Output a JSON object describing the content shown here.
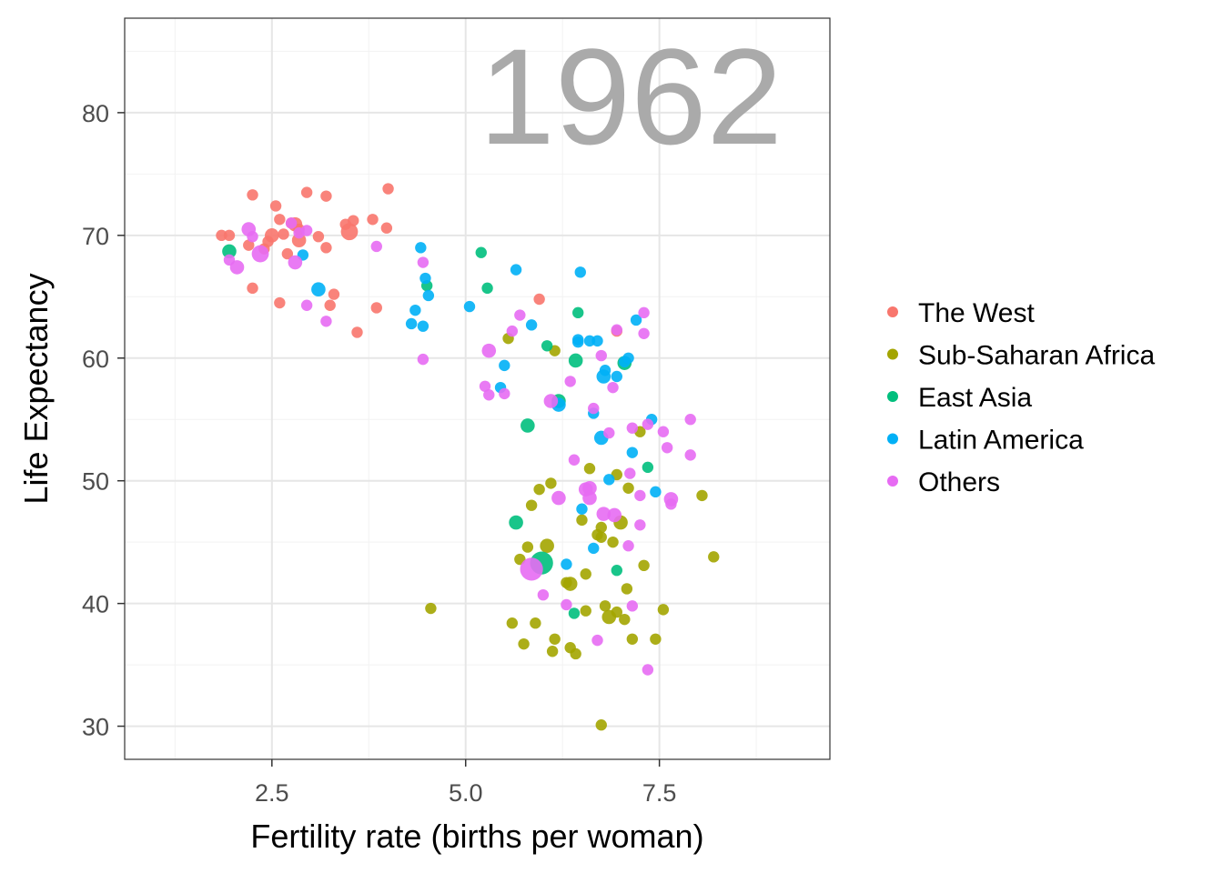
{
  "chart_data": {
    "type": "scatter",
    "title": "",
    "annotation": "1962",
    "xlabel": "Fertility rate (births per woman)",
    "ylabel": "Life Expectancy",
    "xlim": [
      0.6,
      9.7
    ],
    "ylim": [
      27.3,
      87.7
    ],
    "xticks": [
      2.5,
      5.0,
      7.5
    ],
    "xtick_labels": [
      "2.5",
      "5.0",
      "7.5"
    ],
    "yticks": [
      30,
      40,
      50,
      60,
      70,
      80
    ],
    "ytick_labels": [
      "30",
      "40",
      "50",
      "60",
      "70",
      "80"
    ],
    "grid": true,
    "legend_position": "right",
    "series": [
      {
        "name": "The West",
        "color": "#F8766D",
        "points": [
          [
            1.85,
            70.0
          ],
          [
            1.95,
            70.0
          ],
          [
            2.25,
            73.3
          ],
          [
            2.2,
            69.2
          ],
          [
            2.25,
            65.7
          ],
          [
            2.4,
            68.9
          ],
          [
            2.45,
            69.5
          ],
          [
            2.5,
            70.0
          ],
          [
            2.55,
            72.4
          ],
          [
            2.6,
            71.3
          ],
          [
            2.65,
            70.1
          ],
          [
            2.6,
            64.5
          ],
          [
            2.7,
            68.5
          ],
          [
            2.75,
            71.0
          ],
          [
            2.8,
            70.9
          ],
          [
            2.85,
            70.5
          ],
          [
            2.85,
            69.6
          ],
          [
            2.95,
            73.5
          ],
          [
            3.1,
            69.9
          ],
          [
            3.2,
            73.2
          ],
          [
            3.2,
            69.0
          ],
          [
            3.25,
            64.3
          ],
          [
            3.3,
            65.2
          ],
          [
            3.45,
            70.9
          ],
          [
            3.5,
            70.3
          ],
          [
            3.55,
            71.2
          ],
          [
            3.6,
            62.1
          ],
          [
            3.8,
            71.3
          ],
          [
            3.85,
            64.1
          ],
          [
            4.0,
            73.8
          ],
          [
            3.98,
            70.6
          ],
          [
            5.95,
            64.8
          ],
          [
            6.95,
            62.2
          ]
        ],
        "sizes": [
          2,
          2,
          2,
          2,
          2,
          2,
          2,
          3,
          2,
          2,
          2,
          2,
          2,
          2,
          3,
          2,
          3,
          2,
          2,
          2,
          2,
          2,
          2,
          2,
          4,
          2,
          2,
          2,
          2,
          2,
          2,
          2,
          2
        ]
      },
      {
        "name": "Sub-Saharan Africa",
        "color": "#A3A500",
        "points": [
          [
            4.55,
            39.6
          ],
          [
            5.55,
            61.6
          ],
          [
            5.6,
            38.4
          ],
          [
            5.7,
            43.6
          ],
          [
            5.75,
            36.7
          ],
          [
            5.8,
            44.6
          ],
          [
            5.85,
            48.0
          ],
          [
            5.9,
            38.4
          ],
          [
            5.95,
            49.3
          ],
          [
            6.05,
            44.7
          ],
          [
            6.1,
            49.8
          ],
          [
            6.12,
            36.1
          ],
          [
            6.15,
            60.6
          ],
          [
            6.15,
            37.1
          ],
          [
            6.3,
            41.7
          ],
          [
            6.35,
            36.4
          ],
          [
            6.35,
            41.6
          ],
          [
            6.42,
            35.9
          ],
          [
            6.5,
            46.8
          ],
          [
            6.55,
            42.4
          ],
          [
            6.55,
            39.4
          ],
          [
            6.6,
            51.0
          ],
          [
            6.7,
            45.6
          ],
          [
            6.75,
            45.4
          ],
          [
            6.75,
            30.1
          ],
          [
            6.75,
            46.2
          ],
          [
            6.8,
            39.8
          ],
          [
            6.85,
            38.9
          ],
          [
            6.9,
            45.0
          ],
          [
            6.95,
            50.5
          ],
          [
            6.95,
            39.3
          ],
          [
            7.0,
            46.6
          ],
          [
            7.05,
            38.7
          ],
          [
            7.08,
            41.2
          ],
          [
            7.1,
            49.4
          ],
          [
            7.15,
            37.1
          ],
          [
            7.25,
            54.0
          ],
          [
            7.3,
            43.1
          ],
          [
            7.45,
            37.1
          ],
          [
            7.55,
            39.5
          ],
          [
            8.05,
            48.8
          ],
          [
            8.2,
            43.8
          ]
        ],
        "sizes": [
          2,
          2,
          2,
          2,
          2,
          2,
          2,
          2,
          2,
          3,
          2,
          2,
          2,
          2,
          2,
          2,
          3,
          2,
          2,
          2,
          2,
          2,
          2,
          2,
          2,
          2,
          2,
          3,
          2,
          2,
          2,
          3,
          2,
          2,
          2,
          2,
          2,
          2,
          2,
          2,
          2,
          2
        ]
      },
      {
        "name": "East Asia",
        "color": "#00BF7D",
        "points": [
          [
            1.95,
            68.7
          ],
          [
            4.5,
            65.9
          ],
          [
            5.2,
            68.6
          ],
          [
            5.28,
            65.7
          ],
          [
            5.8,
            54.5
          ],
          [
            5.65,
            46.6
          ],
          [
            5.98,
            43.3
          ],
          [
            6.05,
            61.0
          ],
          [
            6.2,
            56.5
          ],
          [
            6.4,
            39.2
          ],
          [
            6.42,
            59.8
          ],
          [
            6.45,
            63.7
          ],
          [
            6.95,
            42.7
          ],
          [
            7.05,
            59.6
          ],
          [
            7.35,
            51.1
          ]
        ],
        "sizes": [
          3,
          2,
          2,
          2,
          3,
          3,
          6,
          2,
          3,
          2,
          3,
          2,
          2,
          3,
          2
        ]
      },
      {
        "name": "Latin America",
        "color": "#00B0F6",
        "points": [
          [
            2.9,
            68.4
          ],
          [
            3.1,
            65.6
          ],
          [
            4.3,
            62.8
          ],
          [
            4.35,
            63.9
          ],
          [
            4.42,
            69.0
          ],
          [
            4.45,
            62.6
          ],
          [
            4.48,
            66.5
          ],
          [
            4.52,
            65.1
          ],
          [
            5.05,
            64.2
          ],
          [
            5.45,
            57.6
          ],
          [
            5.5,
            59.4
          ],
          [
            5.65,
            67.2
          ],
          [
            5.85,
            62.7
          ],
          [
            6.2,
            56.2
          ],
          [
            6.3,
            43.2
          ],
          [
            6.45,
            61.3
          ],
          [
            6.45,
            61.5
          ],
          [
            6.48,
            67.0
          ],
          [
            6.5,
            47.7
          ],
          [
            6.6,
            61.4
          ],
          [
            6.65,
            55.5
          ],
          [
            6.65,
            44.5
          ],
          [
            6.7,
            61.4
          ],
          [
            6.75,
            53.5
          ],
          [
            6.78,
            58.5
          ],
          [
            6.8,
            59.0
          ],
          [
            6.85,
            50.1
          ],
          [
            6.95,
            58.5
          ],
          [
            7.05,
            59.7
          ],
          [
            7.1,
            60.0
          ],
          [
            7.15,
            52.3
          ],
          [
            7.2,
            63.1
          ],
          [
            7.4,
            55.0
          ],
          [
            7.45,
            49.1
          ]
        ],
        "sizes": [
          2,
          3,
          2,
          2,
          2,
          2,
          2,
          2,
          2,
          2,
          2,
          2,
          2,
          3,
          2,
          2,
          2,
          2,
          2,
          2,
          2,
          2,
          2,
          3,
          3,
          2,
          2,
          2,
          2,
          2,
          2,
          2,
          2,
          2
        ]
      },
      {
        "name": "Others",
        "color": "#E76BF3",
        "points": [
          [
            1.95,
            68.0
          ],
          [
            2.05,
            67.4
          ],
          [
            2.2,
            70.5
          ],
          [
            2.25,
            69.9
          ],
          [
            2.35,
            68.5
          ],
          [
            2.75,
            71.0
          ],
          [
            2.8,
            67.8
          ],
          [
            2.85,
            70.2
          ],
          [
            2.95,
            64.3
          ],
          [
            2.95,
            70.4
          ],
          [
            3.2,
            63.0
          ],
          [
            3.85,
            69.1
          ],
          [
            4.45,
            59.9
          ],
          [
            4.45,
            67.8
          ],
          [
            5.25,
            57.7
          ],
          [
            5.3,
            57.0
          ],
          [
            5.3,
            60.6
          ],
          [
            5.5,
            57.1
          ],
          [
            5.6,
            62.2
          ],
          [
            5.7,
            63.5
          ],
          [
            5.85,
            42.8
          ],
          [
            6.0,
            40.7
          ],
          [
            6.1,
            56.5
          ],
          [
            6.2,
            48.6
          ],
          [
            6.3,
            39.9
          ],
          [
            6.35,
            58.1
          ],
          [
            6.4,
            51.7
          ],
          [
            6.55,
            49.3
          ],
          [
            6.6,
            49.4
          ],
          [
            6.6,
            48.6
          ],
          [
            6.65,
            55.9
          ],
          [
            6.7,
            37.0
          ],
          [
            6.75,
            60.2
          ],
          [
            6.78,
            47.3
          ],
          [
            6.85,
            53.9
          ],
          [
            6.9,
            57.6
          ],
          [
            6.92,
            47.2
          ],
          [
            6.95,
            62.3
          ],
          [
            7.1,
            44.7
          ],
          [
            7.12,
            50.6
          ],
          [
            7.15,
            39.8
          ],
          [
            7.15,
            54.3
          ],
          [
            7.25,
            48.8
          ],
          [
            7.25,
            46.4
          ],
          [
            7.3,
            62.0
          ],
          [
            7.3,
            63.7
          ],
          [
            7.35,
            54.6
          ],
          [
            7.35,
            34.6
          ],
          [
            7.55,
            54.0
          ],
          [
            7.6,
            52.7
          ],
          [
            7.65,
            48.1
          ],
          [
            7.65,
            48.5
          ],
          [
            7.9,
            55.0
          ],
          [
            7.9,
            52.1
          ]
        ],
        "sizes": [
          2,
          3,
          3,
          2,
          4,
          2,
          3,
          2,
          2,
          2,
          2,
          2,
          2,
          2,
          2,
          2,
          3,
          2,
          2,
          2,
          6,
          2,
          3,
          3,
          2,
          2,
          2,
          3,
          3,
          3,
          2,
          2,
          2,
          3,
          2,
          2,
          3,
          2,
          2,
          2,
          2,
          2,
          2,
          2,
          2,
          2,
          2,
          2,
          2,
          2,
          2,
          3,
          2,
          2
        ]
      }
    ]
  }
}
